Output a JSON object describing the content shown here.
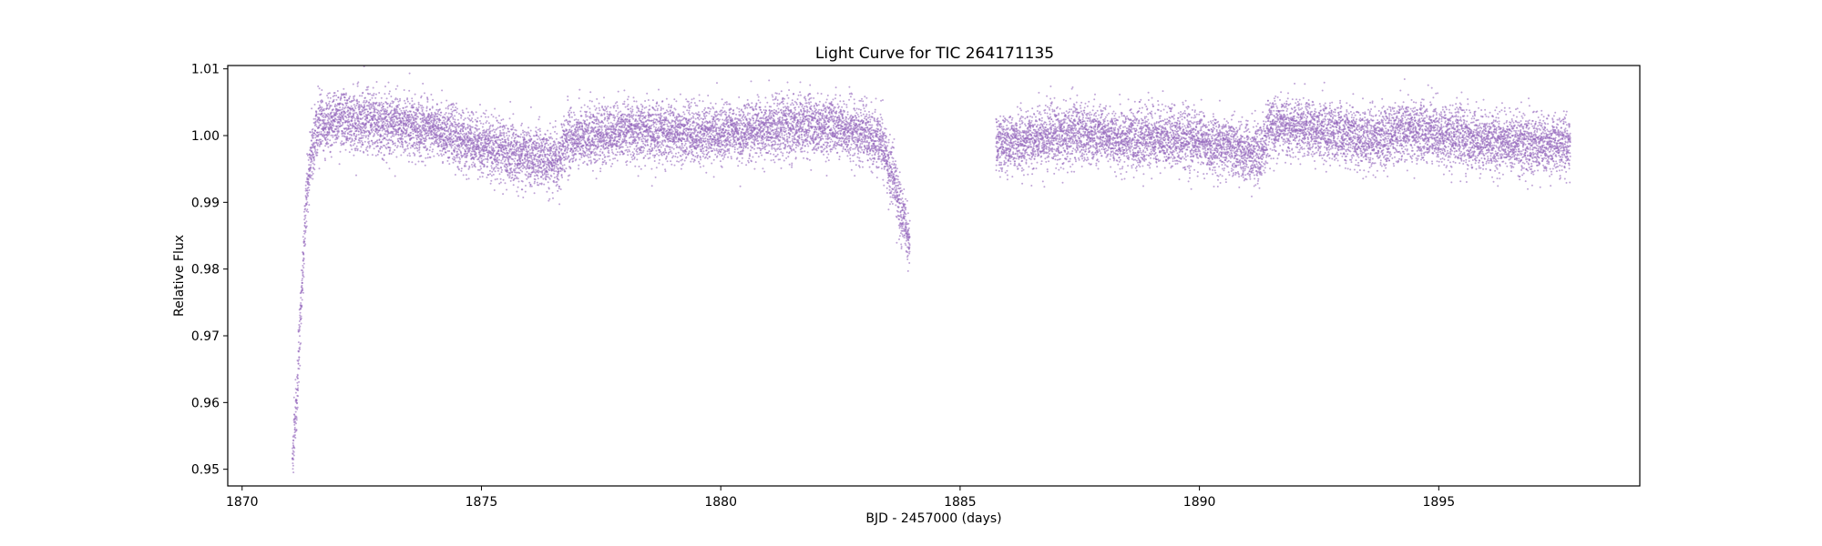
{
  "chart_data": {
    "type": "scatter",
    "title": "Light Curve for TIC 264171135",
    "xlabel": "BJD - 2457000 (days)",
    "ylabel": "Relative Flux",
    "xlim": [
      1869.7,
      1899.2
    ],
    "ylim": [
      0.9475,
      1.0105
    ],
    "x_ticks": [
      1870,
      1875,
      1880,
      1885,
      1890,
      1895
    ],
    "y_ticks": [
      0.95,
      0.96,
      0.97,
      0.98,
      0.99,
      1.0,
      1.01
    ],
    "y_tick_labels": [
      "0.95",
      "0.96",
      "0.97",
      "0.98",
      "0.99",
      "1.00",
      "1.01"
    ],
    "grid": false,
    "marker_color": "#9467bd",
    "segments": [
      {
        "x_start": 1871.05,
        "x_end": 1883.95
      },
      {
        "x_start": 1885.75,
        "x_end": 1897.75
      }
    ],
    "series": [
      {
        "trend": [
          [
            1871.05,
            0.951
          ],
          [
            1871.15,
            0.961
          ],
          [
            1871.25,
            0.978
          ],
          [
            1871.35,
            0.991
          ],
          [
            1871.45,
            0.998
          ],
          [
            1871.6,
            1.0015
          ],
          [
            1872.0,
            1.0025
          ],
          [
            1873.0,
            1.0018
          ],
          [
            1874.0,
            1.0008
          ],
          [
            1875.0,
            0.9985
          ],
          [
            1876.0,
            0.9968
          ],
          [
            1876.6,
            0.9962
          ],
          [
            1876.8,
            0.9995
          ],
          [
            1878.0,
            1.0005
          ],
          [
            1879.5,
            1.0002
          ],
          [
            1881.0,
            1.001
          ],
          [
            1882.0,
            1.0015
          ],
          [
            1883.0,
            1.0005
          ],
          [
            1883.4,
            0.998
          ],
          [
            1883.6,
            0.9935
          ],
          [
            1883.8,
            0.988
          ],
          [
            1883.95,
            0.9845
          ]
        ],
        "noise_sd": 0.0022
      },
      {
        "trend": [
          [
            1885.75,
            0.9985
          ],
          [
            1886.5,
            0.9995
          ],
          [
            1887.5,
            1.0005
          ],
          [
            1888.5,
            0.9995
          ],
          [
            1889.5,
            0.9998
          ],
          [
            1890.5,
            0.9985
          ],
          [
            1891.3,
            0.9975
          ],
          [
            1891.5,
            1.0015
          ],
          [
            1892.5,
            1.0008
          ],
          [
            1893.5,
            0.9995
          ],
          [
            1894.5,
            1.0008
          ],
          [
            1895.5,
            0.9995
          ],
          [
            1896.5,
            0.999
          ],
          [
            1897.75,
            0.9985
          ]
        ],
        "noise_sd": 0.0022
      }
    ]
  }
}
